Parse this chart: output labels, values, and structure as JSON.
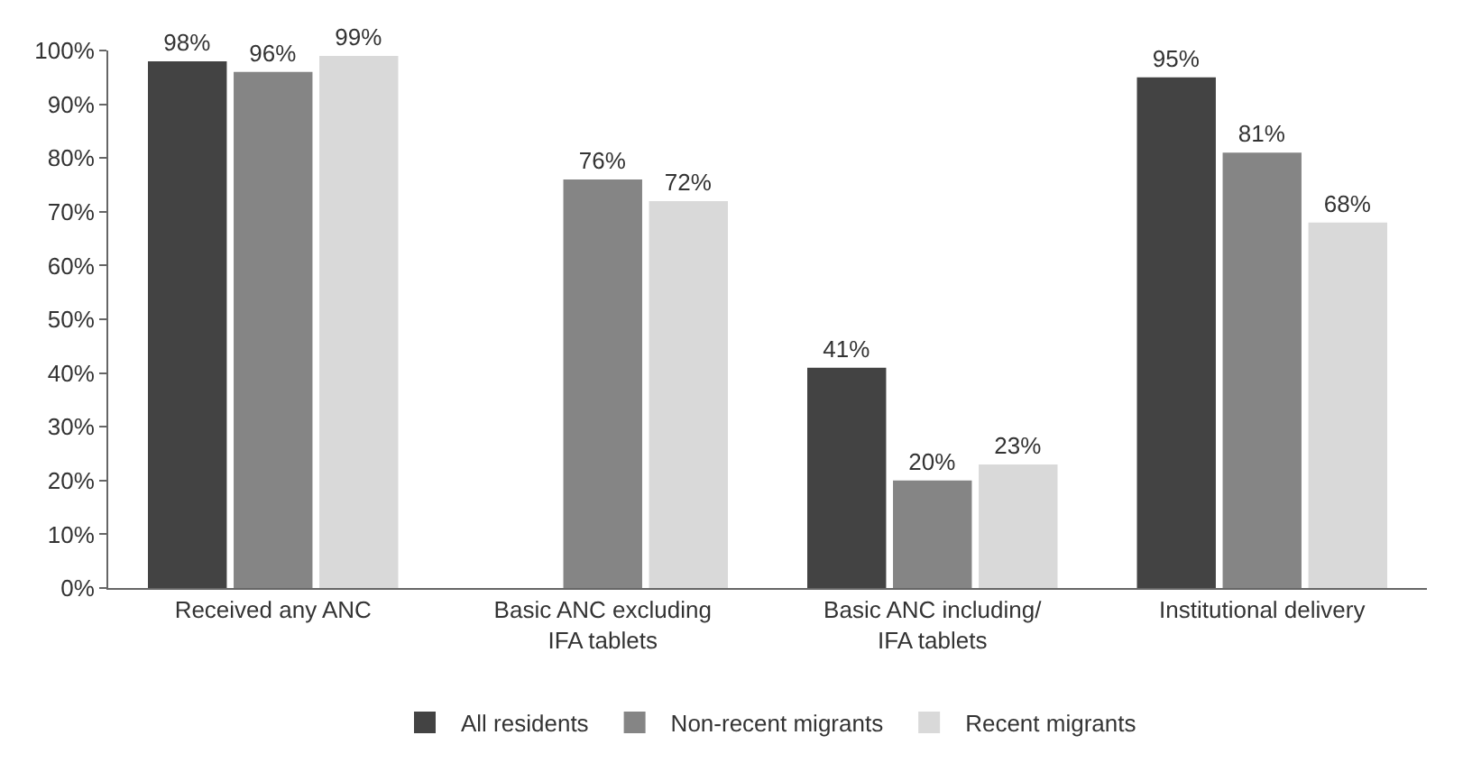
{
  "chart_data": {
    "type": "bar",
    "categories": [
      "Received any ANC",
      "Basic ANC excluding\nIFA tablets",
      "Basic ANC including/\nIFA tablets",
      "Institutional delivery"
    ],
    "series": [
      {
        "name": "All residents",
        "color": "#434343",
        "values": [
          98,
          null,
          41,
          95
        ],
        "value_labels": [
          "98%",
          null,
          "41%",
          "95%"
        ]
      },
      {
        "name": "Non-recent migrants",
        "color": "#858585",
        "values": [
          96,
          76,
          20,
          81
        ],
        "value_labels": [
          "96%",
          "76%",
          "20%",
          "81%"
        ]
      },
      {
        "name": "Recent migrants",
        "color": "#d9d9d9",
        "values": [
          99,
          72,
          23,
          68
        ],
        "value_labels": [
          "99%",
          "72%",
          "23%",
          "68%"
        ]
      }
    ],
    "ylim": [
      0,
      100
    ],
    "yticks": [
      {
        "value": 0,
        "label": "0%"
      },
      {
        "value": 10,
        "label": "10%"
      },
      {
        "value": 20,
        "label": "20%"
      },
      {
        "value": 30,
        "label": "30%"
      },
      {
        "value": 40,
        "label": "40%"
      },
      {
        "value": 50,
        "label": "50%"
      },
      {
        "value": 60,
        "label": "60%"
      },
      {
        "value": 70,
        "label": "70%"
      },
      {
        "value": 80,
        "label": "80%"
      },
      {
        "value": 90,
        "label": "90%"
      },
      {
        "value": 100,
        "label": "100%"
      }
    ],
    "legend": "bottom"
  }
}
